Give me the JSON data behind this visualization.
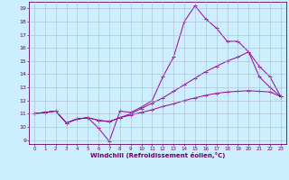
{
  "xlabel": "Windchill (Refroidissement éolien,°C)",
  "background_color": "#cceeff",
  "line_color": "#990099",
  "xlim": [
    -0.5,
    23.5
  ],
  "ylim": [
    8.7,
    19.5
  ],
  "xticks": [
    0,
    1,
    2,
    3,
    4,
    5,
    6,
    7,
    8,
    9,
    10,
    11,
    12,
    13,
    14,
    15,
    16,
    17,
    18,
    19,
    20,
    21,
    22,
    23
  ],
  "yticks": [
    9,
    10,
    11,
    12,
    13,
    14,
    15,
    16,
    17,
    18,
    19
  ],
  "line_a_x": [
    0,
    1,
    2,
    3,
    4,
    5,
    6,
    7,
    8,
    9,
    10,
    11,
    12,
    13,
    14,
    15,
    16,
    17,
    18,
    19,
    20,
    21,
    22,
    23
  ],
  "line_a_y": [
    11.0,
    11.1,
    11.2,
    10.3,
    10.6,
    10.7,
    9.9,
    8.9,
    11.2,
    11.1,
    11.5,
    12.0,
    13.8,
    15.3,
    18.0,
    19.2,
    18.2,
    17.5,
    16.5,
    16.5,
    15.7,
    13.8,
    13.0,
    12.3
  ],
  "line_b_x": [
    0,
    1,
    2,
    3,
    4,
    5,
    6,
    7,
    8,
    9,
    10,
    11,
    12,
    13,
    14,
    15,
    16,
    17,
    18,
    19,
    20,
    21,
    22,
    23
  ],
  "line_b_y": [
    11.0,
    11.1,
    11.2,
    10.3,
    10.6,
    10.7,
    10.5,
    10.4,
    10.7,
    10.9,
    11.1,
    11.3,
    11.55,
    11.75,
    12.0,
    12.2,
    12.4,
    12.55,
    12.65,
    12.7,
    12.75,
    12.7,
    12.65,
    12.3
  ],
  "line_c_x": [
    0,
    1,
    2,
    3,
    4,
    5,
    6,
    7,
    8,
    9,
    10,
    11,
    12,
    13,
    14,
    15,
    16,
    17,
    18,
    19,
    20,
    21,
    22,
    23
  ],
  "line_c_y": [
    11.0,
    11.1,
    11.2,
    10.3,
    10.6,
    10.7,
    10.5,
    10.4,
    10.7,
    11.0,
    11.4,
    11.8,
    12.2,
    12.7,
    13.2,
    13.7,
    14.2,
    14.6,
    15.0,
    15.3,
    15.7,
    14.6,
    13.8,
    12.3
  ]
}
